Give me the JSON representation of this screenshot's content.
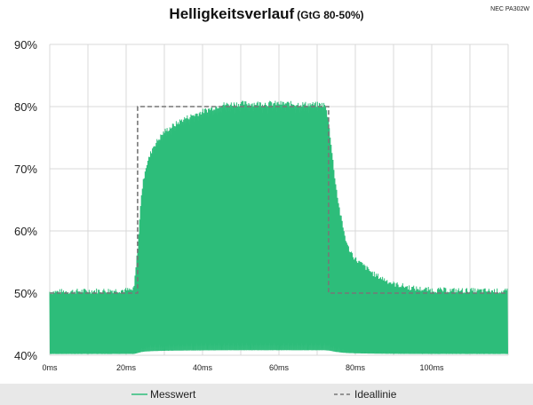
{
  "chart_data": {
    "type": "line",
    "title": "Helligkeitsverlauf",
    "subtitle": "(GtG 80-50%)",
    "corner_label": "NEC PA302W",
    "xlabel": "",
    "ylabel": "",
    "xlim": [
      0,
      120
    ],
    "ylim": [
      40,
      90
    ],
    "x_ticks": [
      0,
      20,
      40,
      60,
      80,
      100
    ],
    "x_tick_labels": [
      "0ms",
      "20ms",
      "40ms",
      "60ms",
      "80ms",
      "100ms"
    ],
    "y_ticks": [
      40,
      50,
      60,
      70,
      80,
      90
    ],
    "y_tick_labels": [
      "40%",
      "50%",
      "60%",
      "70%",
      "80%",
      "90%"
    ],
    "grid": "vertical-and-horizontal",
    "legend_position": "bottom",
    "series": [
      {
        "name": "Messwert",
        "color": "#2dbd7a",
        "style": "filled-oscillation",
        "envelope_upper": [
          [
            0,
            50.2
          ],
          [
            22,
            50.5
          ],
          [
            23,
            57
          ],
          [
            24,
            66
          ],
          [
            25,
            70
          ],
          [
            27,
            73.5
          ],
          [
            30,
            76
          ],
          [
            35,
            78
          ],
          [
            40,
            79.2
          ],
          [
            45,
            80.3
          ],
          [
            50,
            80.5
          ],
          [
            60,
            80.5
          ],
          [
            72,
            80.3
          ],
          [
            73,
            78
          ],
          [
            74,
            72
          ],
          [
            75,
            67
          ],
          [
            76,
            63
          ],
          [
            77,
            60
          ],
          [
            78,
            57.5
          ],
          [
            80,
            55.5
          ],
          [
            85,
            53
          ],
          [
            90,
            51.5
          ],
          [
            95,
            50.8
          ],
          [
            100,
            50.5
          ],
          [
            120,
            50.3
          ]
        ],
        "envelope_lower": [
          [
            0,
            40
          ],
          [
            120,
            40
          ]
        ]
      },
      {
        "name": "Ideallinie",
        "color": "#777777",
        "style": "dashed",
        "x": [
          0,
          23,
          23,
          73,
          73,
          120
        ],
        "y": [
          50,
          50,
          80,
          80,
          50,
          50
        ]
      }
    ]
  },
  "legend": {
    "items": [
      {
        "label": "Messwert",
        "color": "#2dbd7a",
        "style": "solid"
      },
      {
        "label": "Ideallinie",
        "color": "#777777",
        "style": "dashed"
      }
    ]
  }
}
